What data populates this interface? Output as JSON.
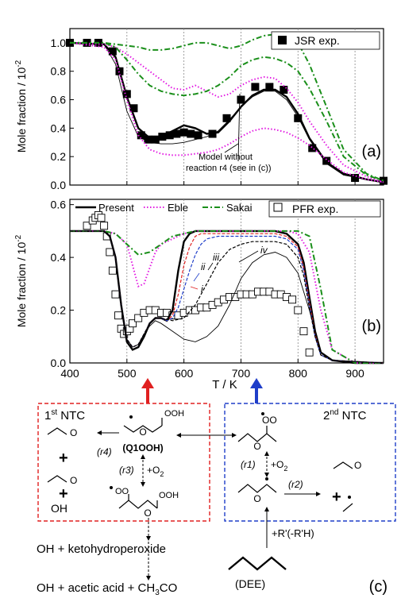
{
  "colors": {
    "present": "#000000",
    "eble": "#e21be2",
    "sakai": "#1a8f1a",
    "ntc1": "#e02020",
    "ntc2": "#1f3ec9",
    "v_i": "#e02020",
    "v_ii": "#1f3ec9",
    "v_iii": "#000000",
    "v_iv": "#000000"
  },
  "chart_data": [
    {
      "panel_label": "(a)",
      "type": "line",
      "xlim": [
        400,
        950
      ],
      "ylim": [
        0.0,
        1.1
      ],
      "yticks": [
        "0.0",
        "0.2",
        "0.4",
        "0.6",
        "0.8",
        "1.0"
      ],
      "ylabel_main": "Mole fraction / 10",
      "ylabel_sup": "-2",
      "legend": [
        "JSR exp."
      ],
      "annotation": [
        "Model without",
        "reaction r4 (see in (c))"
      ],
      "series": [
        {
          "name": "JSR exp.",
          "style": "marker",
          "x": [
            400,
            430,
            450,
            475,
            487,
            500,
            512,
            525,
            537,
            550,
            562,
            575,
            587,
            600,
            612,
            625,
            650,
            675,
            700,
            725,
            750,
            775,
            800,
            825,
            850,
            900,
            950
          ],
          "y": [
            1.0,
            1.0,
            1.0,
            0.94,
            0.8,
            0.64,
            0.54,
            0.35,
            0.32,
            0.32,
            0.34,
            0.35,
            0.36,
            0.37,
            0.36,
            0.35,
            0.36,
            0.47,
            0.6,
            0.69,
            0.69,
            0.67,
            0.47,
            0.26,
            0.17,
            0.05,
            0.03
          ]
        },
        {
          "key": "present",
          "style": "solid-thick",
          "x": [
            400,
            460,
            480,
            500,
            520,
            540,
            560,
            580,
            600,
            620,
            640,
            660,
            680,
            700,
            720,
            740,
            760,
            780,
            800,
            820,
            850,
            880,
            920,
            950
          ],
          "y": [
            1.0,
            0.99,
            0.9,
            0.62,
            0.4,
            0.33,
            0.34,
            0.38,
            0.42,
            0.4,
            0.36,
            0.37,
            0.45,
            0.55,
            0.63,
            0.67,
            0.67,
            0.62,
            0.5,
            0.33,
            0.16,
            0.08,
            0.04,
            0.02
          ]
        },
        {
          "key": "model_no_r4",
          "style": "solid-thin",
          "x": [
            400,
            460,
            480,
            500,
            520,
            540,
            560,
            580,
            600,
            620,
            640,
            660,
            680,
            700,
            720,
            740,
            760,
            780,
            800,
            820,
            850,
            880,
            920,
            950
          ],
          "y": [
            1.0,
            0.99,
            0.85,
            0.52,
            0.34,
            0.3,
            0.29,
            0.29,
            0.3,
            0.32,
            0.34,
            0.38,
            0.46,
            0.55,
            0.62,
            0.66,
            0.66,
            0.6,
            0.48,
            0.32,
            0.15,
            0.07,
            0.04,
            0.02
          ]
        },
        {
          "key": "eble_upper",
          "style": "dotted",
          "x": [
            400,
            460,
            480,
            500,
            520,
            540,
            560,
            580,
            600,
            620,
            640,
            660,
            680,
            700,
            720,
            740,
            760,
            780,
            800,
            820,
            850,
            880,
            920,
            950
          ],
          "y": [
            1.0,
            0.99,
            0.97,
            0.92,
            0.86,
            0.8,
            0.74,
            0.68,
            0.67,
            0.7,
            0.66,
            0.62,
            0.64,
            0.7,
            0.74,
            0.76,
            0.75,
            0.68,
            0.58,
            0.45,
            0.28,
            0.14,
            0.06,
            0.02
          ]
        },
        {
          "key": "eble_lower",
          "style": "dotted",
          "x": [
            400,
            460,
            480,
            500,
            520,
            540,
            560,
            580,
            600,
            620,
            640,
            660,
            680,
            700,
            720,
            740,
            760,
            780,
            800,
            820,
            850,
            880,
            920,
            950
          ],
          "y": [
            1.0,
            0.97,
            0.88,
            0.6,
            0.35,
            0.25,
            0.22,
            0.21,
            0.21,
            0.22,
            0.23,
            0.25,
            0.29,
            0.34,
            0.38,
            0.4,
            0.39,
            0.37,
            0.33,
            0.28,
            0.18,
            0.09,
            0.04,
            0.02
          ]
        },
        {
          "key": "sakai_upper",
          "style": "dashdot",
          "x": [
            400,
            460,
            480,
            500,
            520,
            540,
            560,
            580,
            600,
            620,
            640,
            660,
            680,
            700,
            720,
            740,
            760,
            780,
            800,
            820,
            850,
            880,
            920,
            950
          ],
          "y": [
            1.0,
            1.0,
            0.99,
            0.98,
            0.97,
            0.95,
            0.95,
            0.96,
            0.98,
            1.0,
            1.0,
            0.98,
            0.96,
            0.98,
            1.02,
            1.05,
            1.06,
            1.05,
            1.0,
            0.85,
            0.55,
            0.25,
            0.08,
            0.03
          ]
        },
        {
          "key": "sakai_lower",
          "style": "dashdot",
          "x": [
            400,
            460,
            480,
            500,
            520,
            540,
            560,
            580,
            600,
            620,
            640,
            660,
            680,
            700,
            720,
            740,
            760,
            780,
            800,
            820,
            850,
            880,
            920,
            950
          ],
          "y": [
            1.0,
            1.0,
            0.97,
            0.88,
            0.78,
            0.7,
            0.66,
            0.64,
            0.63,
            0.64,
            0.66,
            0.7,
            0.76,
            0.84,
            0.88,
            0.9,
            0.89,
            0.86,
            0.8,
            0.68,
            0.45,
            0.2,
            0.07,
            0.03
          ]
        }
      ]
    },
    {
      "panel_label": "(b)",
      "type": "line",
      "xlim": [
        400,
        950
      ],
      "ylim": [
        0.0,
        0.62
      ],
      "xticks": [
        "400",
        "500",
        "600",
        "700",
        "800",
        "900"
      ],
      "yticks": [
        "0.0",
        "0.2",
        "0.4",
        "0.6"
      ],
      "xlabel": "T / K",
      "ylabel_main": "Mole fraction / 10",
      "ylabel_sup": "-2",
      "legend": [
        "Present",
        "Eble",
        "Sakai",
        "PFR exp."
      ],
      "curve_labels": [
        "i",
        "ii",
        "iii",
        "iv"
      ],
      "series": [
        {
          "name": "PFR exp.",
          "style": "marker",
          "x": [
            430,
            440,
            445,
            450,
            455,
            460,
            465,
            470,
            475,
            480,
            485,
            490,
            495,
            500,
            505,
            510,
            520,
            530,
            540,
            550,
            560,
            570,
            580,
            590,
            600,
            610,
            620,
            630,
            640,
            650,
            660,
            670,
            680,
            690,
            700,
            710,
            720,
            730,
            740,
            750,
            760,
            770,
            780,
            790,
            800,
            810,
            820
          ],
          "y": [
            0.52,
            0.54,
            0.55,
            0.56,
            0.55,
            0.52,
            0.48,
            0.42,
            0.35,
            0.26,
            0.18,
            0.13,
            0.11,
            0.12,
            0.13,
            0.15,
            0.17,
            0.19,
            0.2,
            0.2,
            0.19,
            0.19,
            0.18,
            0.18,
            0.19,
            0.2,
            0.2,
            0.21,
            0.21,
            0.22,
            0.23,
            0.24,
            0.25,
            0.25,
            0.26,
            0.26,
            0.26,
            0.27,
            0.27,
            0.27,
            0.26,
            0.26,
            0.25,
            0.24,
            0.2,
            0.12,
            0.04
          ]
        },
        {
          "name": "Present",
          "key": "present",
          "style": "solid-thick",
          "x": [
            400,
            460,
            470,
            480,
            490,
            500,
            510,
            520,
            530,
            540,
            550,
            560,
            570,
            580,
            590,
            600,
            610,
            620,
            640,
            680,
            720,
            760,
            780,
            800,
            810,
            820,
            830,
            840,
            860,
            900,
            950
          ],
          "y": [
            0.5,
            0.5,
            0.48,
            0.4,
            0.22,
            0.08,
            0.05,
            0.06,
            0.1,
            0.15,
            0.17,
            0.17,
            0.16,
            0.2,
            0.35,
            0.46,
            0.49,
            0.5,
            0.5,
            0.5,
            0.5,
            0.5,
            0.49,
            0.45,
            0.38,
            0.25,
            0.12,
            0.04,
            0.01,
            0.0,
            0.0
          ]
        },
        {
          "name": "Eble",
          "key": "eble",
          "style": "dotted",
          "x": [
            400,
            460,
            480,
            500,
            510,
            520,
            530,
            540,
            550,
            560,
            580,
            600,
            620,
            640,
            680,
            720,
            760,
            780,
            800,
            820,
            840,
            860,
            900,
            950
          ],
          "y": [
            0.5,
            0.5,
            0.49,
            0.45,
            0.37,
            0.29,
            0.3,
            0.36,
            0.42,
            0.45,
            0.47,
            0.49,
            0.5,
            0.5,
            0.5,
            0.5,
            0.5,
            0.5,
            0.49,
            0.42,
            0.2,
            0.05,
            0.0,
            0.0
          ]
        },
        {
          "name": "Sakai",
          "key": "sakai",
          "style": "dashdot",
          "x": [
            400,
            460,
            480,
            500,
            520,
            540,
            560,
            580,
            600,
            620,
            640,
            680,
            720,
            760,
            780,
            800,
            820,
            840,
            860,
            900,
            950
          ],
          "y": [
            0.5,
            0.5,
            0.49,
            0.45,
            0.41,
            0.42,
            0.45,
            0.48,
            0.49,
            0.5,
            0.5,
            0.5,
            0.5,
            0.5,
            0.5,
            0.5,
            0.48,
            0.28,
            0.05,
            0.0,
            0.0
          ]
        },
        {
          "label": "i",
          "key": "v_i",
          "style": "dashed",
          "x": [
            400,
            460,
            470,
            480,
            490,
            500,
            510,
            520,
            530,
            540,
            550,
            560,
            570,
            580,
            590,
            600,
            610,
            620,
            630,
            640,
            680,
            720,
            760,
            780,
            800,
            810,
            820,
            830,
            840,
            860,
            950
          ],
          "y": [
            0.5,
            0.5,
            0.48,
            0.4,
            0.22,
            0.09,
            0.06,
            0.07,
            0.11,
            0.15,
            0.17,
            0.17,
            0.16,
            0.18,
            0.26,
            0.37,
            0.44,
            0.48,
            0.49,
            0.49,
            0.49,
            0.49,
            0.49,
            0.48,
            0.44,
            0.36,
            0.23,
            0.11,
            0.03,
            0.01,
            0.0
          ]
        },
        {
          "label": "ii",
          "key": "v_ii",
          "style": "dashed",
          "x": [
            400,
            460,
            470,
            480,
            490,
            500,
            510,
            520,
            530,
            540,
            550,
            560,
            570,
            580,
            590,
            600,
            610,
            620,
            630,
            640,
            660,
            680,
            720,
            760,
            780,
            800,
            810,
            820,
            830,
            840,
            860,
            950
          ],
          "y": [
            0.5,
            0.5,
            0.48,
            0.4,
            0.22,
            0.09,
            0.06,
            0.07,
            0.11,
            0.15,
            0.17,
            0.17,
            0.16,
            0.17,
            0.21,
            0.28,
            0.35,
            0.41,
            0.45,
            0.47,
            0.48,
            0.48,
            0.48,
            0.48,
            0.47,
            0.43,
            0.35,
            0.22,
            0.1,
            0.03,
            0.01,
            0.0
          ]
        },
        {
          "label": "iii",
          "key": "v_iii",
          "style": "dashed",
          "x": [
            400,
            460,
            470,
            480,
            490,
            500,
            510,
            520,
            530,
            540,
            550,
            560,
            580,
            600,
            620,
            640,
            660,
            680,
            700,
            720,
            760,
            780,
            800,
            810,
            820,
            830,
            840,
            860,
            950
          ],
          "y": [
            0.5,
            0.5,
            0.48,
            0.4,
            0.22,
            0.09,
            0.06,
            0.07,
            0.11,
            0.15,
            0.17,
            0.17,
            0.16,
            0.17,
            0.22,
            0.3,
            0.38,
            0.43,
            0.45,
            0.46,
            0.46,
            0.45,
            0.4,
            0.33,
            0.21,
            0.1,
            0.03,
            0.01,
            0.0
          ]
        },
        {
          "label": "iv",
          "key": "v_iv",
          "style": "solid-thin",
          "x": [
            400,
            460,
            470,
            480,
            490,
            500,
            510,
            520,
            530,
            540,
            550,
            560,
            580,
            600,
            620,
            640,
            660,
            680,
            700,
            720,
            740,
            760,
            780,
            800,
            820,
            840,
            860,
            950
          ],
          "y": [
            0.5,
            0.5,
            0.48,
            0.4,
            0.22,
            0.09,
            0.06,
            0.07,
            0.11,
            0.14,
            0.16,
            0.15,
            0.12,
            0.09,
            0.08,
            0.1,
            0.14,
            0.22,
            0.32,
            0.38,
            0.41,
            0.42,
            0.4,
            0.34,
            0.2,
            0.04,
            0.01,
            0.0
          ]
        }
      ]
    }
  ],
  "scheme": {
    "panel_label": "(c)",
    "ntc1": {
      "label": "1",
      "sup": "st",
      "rest": " NTC"
    },
    "ntc2": {
      "label": "2",
      "sup": "nd",
      "rest": " NTC"
    },
    "q1ooh": "(Q1OOH)",
    "r1": "(r1)",
    "r2": "(r2)",
    "r3": "(r3)",
    "r4": "(r4)",
    "plus_o2": "+O",
    "o2_sub": "2",
    "plus_r": "+R'(-R'H)",
    "dee": "(DEE)",
    "oh": "OH",
    "plus": "+",
    "ooh_a": "OOH",
    "ooh_b": "OOH",
    "oo_a": "OO",
    "oo_b": "OO",
    "oo_c": "OO",
    "o_a": "O",
    "o_b": "O",
    "o_c": "O",
    "o_d": "O",
    "o_e": "O",
    "o_f": "O",
    "prod1": "OH + ketohydroperoxide",
    "prod2_main": "OH + acetic acid + CH",
    "prod2_sub": "3",
    "prod2_end": "CO"
  }
}
